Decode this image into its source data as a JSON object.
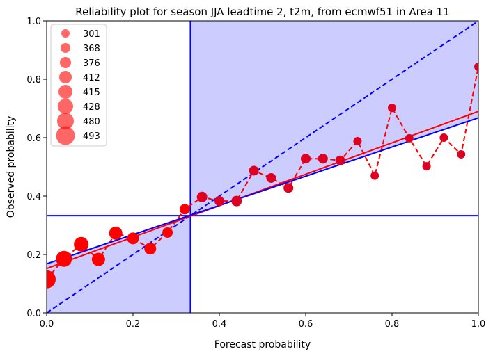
{
  "chart_data": {
    "type": "scatter",
    "title": "Reliability plot for season JJA leadtime 2, t2m, from ecmwf51 in Area 11",
    "xlabel": "Forecast probability",
    "ylabel": "Observed probability",
    "xlim": [
      0.0,
      1.0
    ],
    "ylim": [
      0.0,
      1.0
    ],
    "x_ticks": [
      "0.0",
      "0.2",
      "0.4",
      "0.6",
      "0.8",
      "1.0"
    ],
    "y_ticks": [
      "0.0",
      "0.2",
      "0.4",
      "0.6",
      "0.8",
      "1.0"
    ],
    "climatology": 0.333,
    "skill_region_color": "#ccccff",
    "legend": {
      "placement": "top-left",
      "entries": [
        "301",
        "368",
        "376",
        "412",
        "415",
        "428",
        "480",
        "493"
      ]
    },
    "points": {
      "x": [
        0.0,
        0.04,
        0.08,
        0.12,
        0.16,
        0.2,
        0.24,
        0.28,
        0.32,
        0.36,
        0.4,
        0.44,
        0.48,
        0.52,
        0.56,
        0.6,
        0.64,
        0.68,
        0.72,
        0.76,
        0.8,
        0.84,
        0.88,
        0.92,
        0.96,
        1.0
      ],
      "y": [
        0.115,
        0.185,
        0.235,
        0.183,
        0.273,
        0.255,
        0.22,
        0.275,
        0.355,
        0.397,
        0.383,
        0.383,
        0.487,
        0.462,
        0.428,
        0.528,
        0.528,
        0.522,
        0.588,
        0.47,
        0.702,
        0.598,
        0.502,
        0.6,
        0.543,
        0.843
      ],
      "size_rank": [
        8,
        7,
        6,
        5,
        5,
        4,
        4,
        3,
        3,
        3,
        2,
        3,
        2,
        2,
        2,
        2,
        2,
        2,
        1,
        1,
        1,
        1,
        1,
        1,
        1,
        1
      ],
      "color": "#ff0000"
    },
    "fit_lines": [
      {
        "color": "#ff0000",
        "x": [
          0.0,
          1.0
        ],
        "y": [
          0.152,
          0.69
        ]
      },
      {
        "color": "#0000ff",
        "x": [
          0.0,
          1.0
        ],
        "y": [
          0.168,
          0.668
        ]
      }
    ],
    "diagonal": {
      "color": "#0000ff",
      "style": "dashed"
    }
  }
}
